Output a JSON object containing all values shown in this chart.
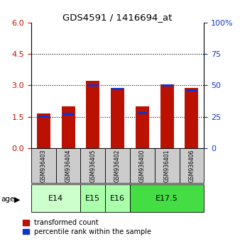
{
  "title": "GDS4591 / 1416694_at",
  "samples": [
    "GSM936403",
    "GSM936404",
    "GSM936405",
    "GSM936402",
    "GSM936400",
    "GSM936401",
    "GSM936406"
  ],
  "transformed_count": [
    1.65,
    2.0,
    3.2,
    2.88,
    2.0,
    3.05,
    2.88
  ],
  "percentile_rank_pct": [
    25,
    27,
    50,
    47,
    28,
    50,
    46
  ],
  "age_groups": [
    {
      "label": "E14",
      "start": 0,
      "end": 2,
      "color": "#ccffcc"
    },
    {
      "label": "E15",
      "start": 2,
      "end": 3,
      "color": "#aaffaa"
    },
    {
      "label": "E16",
      "start": 3,
      "end": 4,
      "color": "#aaffaa"
    },
    {
      "label": "E17.5",
      "start": 4,
      "end": 7,
      "color": "#44dd44"
    }
  ],
  "ylim_left": [
    0,
    6
  ],
  "ylim_right": [
    0,
    100
  ],
  "yticks_left": [
    0,
    1.5,
    3.0,
    4.5,
    6
  ],
  "yticks_right": [
    0,
    25,
    50,
    75,
    100
  ],
  "bar_color_red": "#bb1100",
  "bar_color_blue": "#1133cc",
  "bar_width": 0.55,
  "blue_bar_width": 0.45,
  "background_color": "#ffffff",
  "sample_box_color": "#cccccc",
  "age_arrow_color": "#444444"
}
